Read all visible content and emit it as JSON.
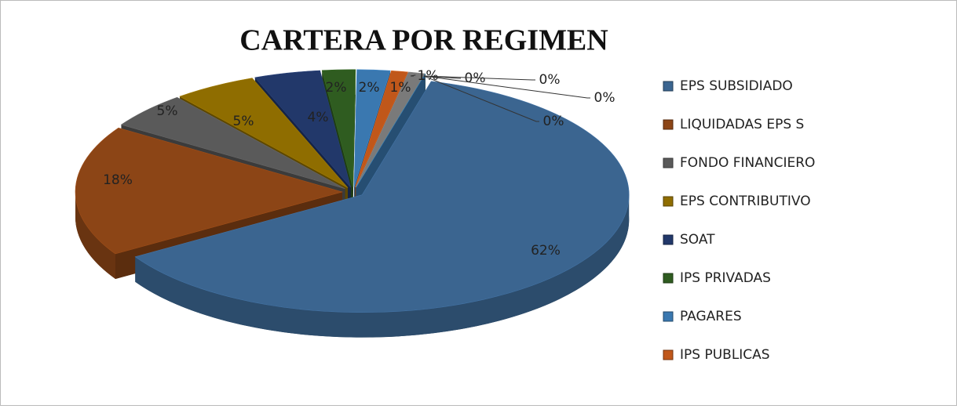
{
  "chart_data": {
    "type": "pie3d",
    "title": "CARTERA POR REGIMEN",
    "categories": [
      "EPS SUBSIDIADO",
      "LIQUIDADAS EPS S",
      "FONDO FINANCIERO",
      "EPS CONTRIBUTIVO",
      "SOAT",
      "IPS PRIVADAS",
      "PAGARES",
      "IPS PUBLICAS",
      null,
      null,
      null,
      null,
      null
    ],
    "values": [
      62,
      18,
      5,
      5,
      4,
      2,
      2,
      1,
      1,
      0,
      0,
      0,
      0
    ],
    "value_labels": [
      "62%",
      "18%",
      "5%",
      "5%",
      "4%",
      "2%",
      "2%",
      "1%",
      "1%",
      "0%",
      "0%",
      "0%",
      "0%"
    ],
    "colors": [
      "#3b6590",
      "#8c4516",
      "#5a5a5a",
      "#8f6d00",
      "#22386a",
      "#2f5c20",
      "#3a78b0",
      "#c0571a",
      "#7a7a7a",
      "#bf9000",
      "#22386a",
      "#2f5c20",
      "#3a78b0"
    ],
    "legend": "right"
  }
}
